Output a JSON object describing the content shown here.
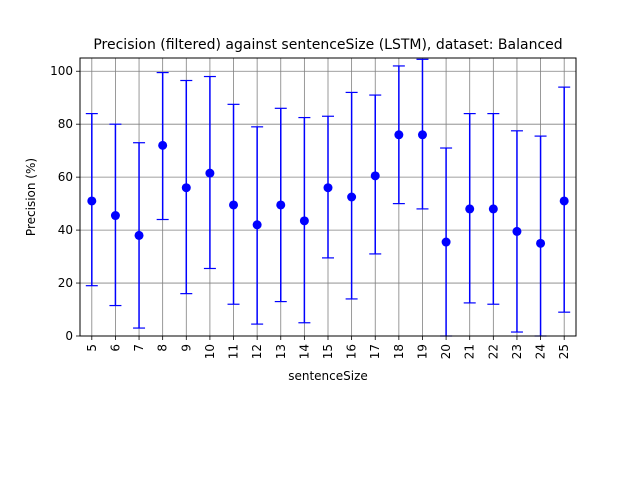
{
  "chart_data": {
    "type": "scatter",
    "title": "Precision (filtered) against sentenceSize (LSTM), dataset: Balanced",
    "xlabel": "sentenceSize",
    "ylabel": "Precision (%)",
    "ylim": [
      0,
      105
    ],
    "yticks": [
      0,
      20,
      40,
      60,
      80,
      100
    ],
    "grid": true,
    "error_bars": true,
    "categories": [
      "5",
      "6",
      "7",
      "8",
      "9",
      "10",
      "11",
      "12",
      "13",
      "14",
      "15",
      "16",
      "17",
      "18",
      "19",
      "20",
      "21",
      "22",
      "23",
      "24",
      "25"
    ],
    "series": [
      {
        "values": [
          51,
          45.5,
          38,
          72,
          56,
          61.5,
          49.5,
          42,
          49.5,
          43.5,
          56,
          52.5,
          60.5,
          76,
          76,
          35.5,
          48,
          48,
          39.5,
          35,
          51
        ],
        "lower": [
          19,
          11.5,
          3,
          44,
          16,
          25.5,
          12,
          4.5,
          13,
          5,
          29.5,
          14,
          31,
          50,
          48,
          0,
          12.5,
          12,
          1.5,
          0,
          9
        ],
        "upper": [
          84,
          80,
          73,
          99.5,
          96.5,
          98,
          87.5,
          79,
          86,
          82.5,
          83,
          92,
          91,
          102,
          104.5,
          71,
          84,
          84,
          77.5,
          75.5,
          94
        ]
      }
    ],
    "colors": {
      "series": "#0000ff",
      "grid": "#808080",
      "axes": "#000000"
    }
  }
}
